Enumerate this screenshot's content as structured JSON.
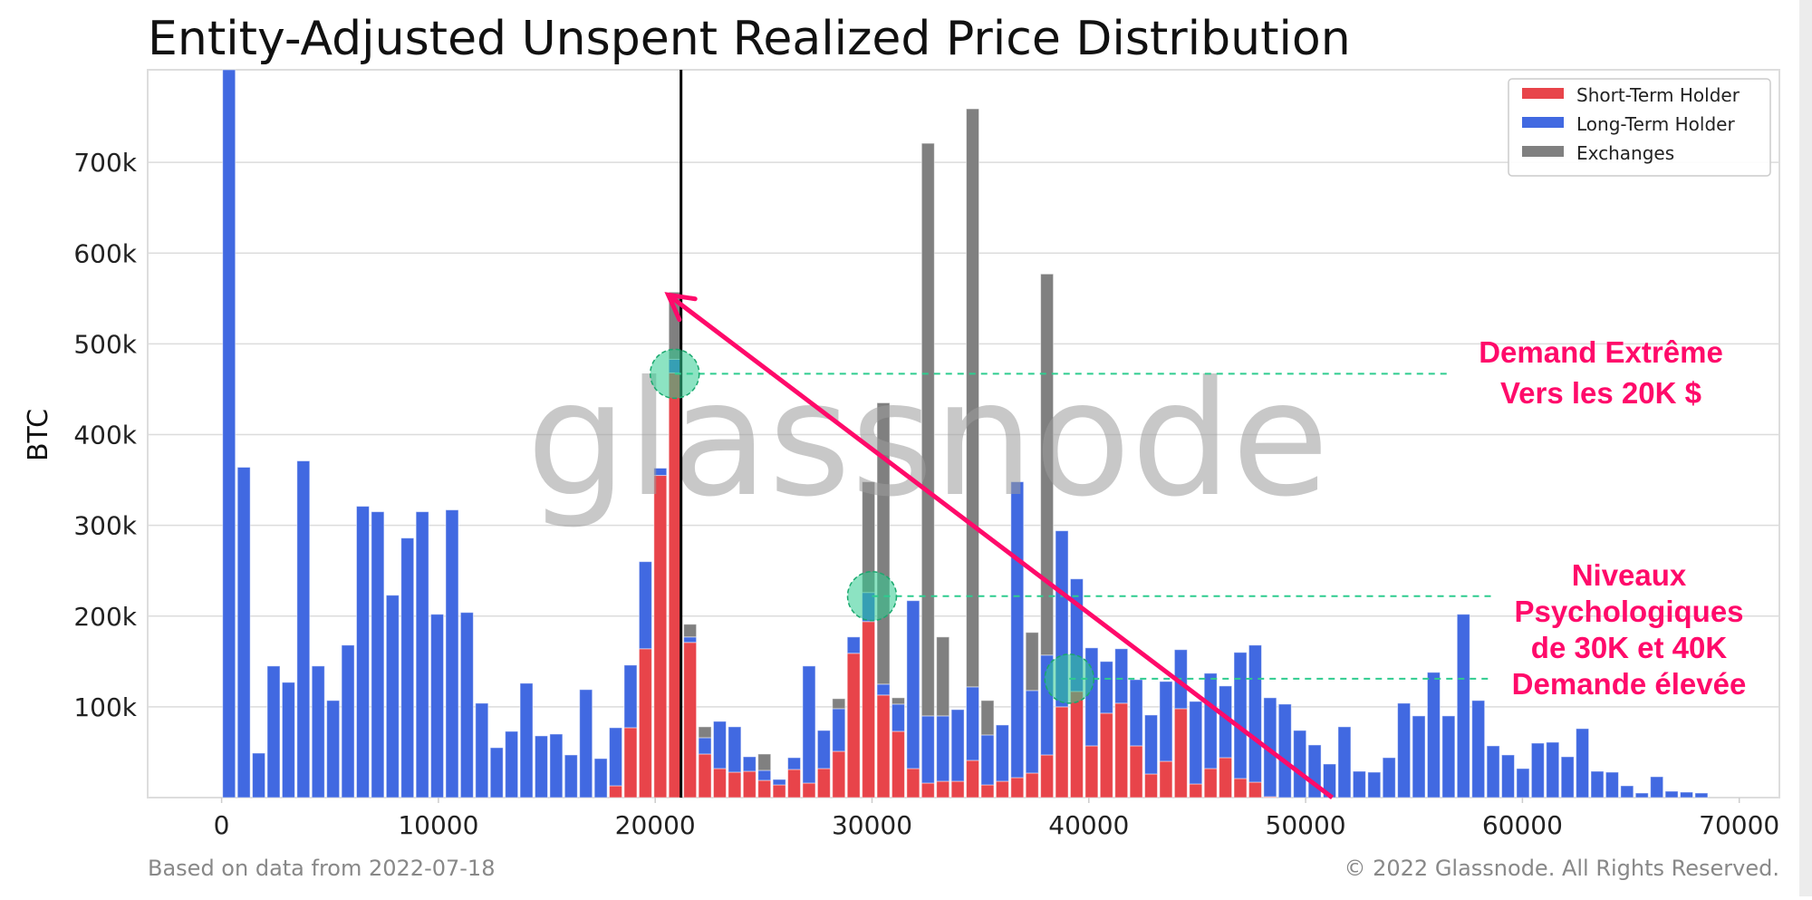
{
  "chart_data": {
    "type": "bar",
    "stacked": true,
    "title": "Entity-Adjusted Unspent Realized Price Distribution",
    "xlabel": "",
    "ylabel": "BTC",
    "xlim": [
      -4000,
      72000
    ],
    "ylim": [
      0,
      802000
    ],
    "grid": "horizontal",
    "legend_position": "top-right",
    "x_ticks": [
      0,
      10000,
      20000,
      30000,
      40000,
      50000,
      60000,
      70000
    ],
    "x_tick_labels": [
      "0",
      "10000",
      "20000",
      "30000",
      "40000",
      "50000",
      "60000",
      "70000"
    ],
    "y_ticks": [
      100000,
      200000,
      300000,
      400000,
      500000,
      600000,
      700000
    ],
    "y_tick_labels": [
      "100k",
      "200k",
      "300k",
      "400k",
      "500k",
      "600k",
      "700k"
    ],
    "x": [
      340,
      1026,
      1712,
      2398,
      3084,
      3770,
      4456,
      5142,
      5828,
      6514,
      7200,
      7886,
      8572,
      9258,
      9944,
      10630,
      11316,
      12002,
      12688,
      13374,
      14060,
      14746,
      15432,
      16118,
      16804,
      17490,
      18176,
      18862,
      19548,
      20234,
      20920,
      21606,
      22292,
      22978,
      23664,
      24350,
      25036,
      25722,
      26408,
      27094,
      27780,
      28466,
      29152,
      29838,
      30524,
      31210,
      31896,
      32582,
      33268,
      33954,
      34640,
      35326,
      36012,
      36698,
      37384,
      38070,
      38756,
      39442,
      40128,
      40814,
      41500,
      42186,
      42872,
      43558,
      44244,
      44930,
      45616,
      46302,
      46988,
      47674,
      48360,
      49046,
      49732,
      50418,
      51104,
      51790,
      52476,
      53162,
      53848,
      54534,
      55220,
      55906,
      56592,
      57278,
      57964,
      58650,
      59336,
      60022,
      60708,
      61394,
      62080,
      62766,
      63452,
      64138,
      64824,
      65510,
      66196,
      66882,
      67568,
      68254
    ],
    "series": [
      {
        "name": "Short-Term Holder",
        "color": "#e8444a",
        "values": [
          0,
          0,
          0,
          0,
          0,
          0,
          0,
          0,
          0,
          0,
          0,
          0,
          0,
          0,
          0,
          0,
          0,
          0,
          0,
          0,
          0,
          0,
          0,
          0,
          0,
          0,
          13000,
          77000,
          164000,
          355000,
          468000,
          171000,
          48000,
          32000,
          28000,
          29000,
          19000,
          14000,
          31000,
          16000,
          32000,
          51000,
          159000,
          194000,
          113000,
          73000,
          32000,
          16000,
          18000,
          18000,
          41000,
          14000,
          18000,
          22000,
          27000,
          47000,
          100000,
          117000,
          57000,
          93000,
          104000,
          57000,
          26000,
          40000,
          98000,
          15000,
          32000,
          44000,
          21000,
          17000,
          1000,
          0,
          0,
          0,
          0,
          0,
          0,
          0,
          0,
          0,
          0,
          0,
          0,
          0,
          0,
          0,
          0,
          0,
          0,
          0,
          0,
          0,
          0,
          0,
          0,
          0,
          0,
          0,
          0,
          0
        ]
      },
      {
        "name": "Long-Term Holder",
        "color": "#4169e1",
        "values": [
          850000,
          364000,
          49000,
          145000,
          127000,
          371000,
          145000,
          107000,
          168000,
          321000,
          315000,
          223000,
          286000,
          315000,
          202000,
          317000,
          204000,
          104000,
          55000,
          73000,
          126000,
          68000,
          70000,
          47000,
          119000,
          43000,
          64000,
          69000,
          96000,
          8000,
          15000,
          6000,
          18000,
          52000,
          50000,
          16000,
          11000,
          6000,
          13000,
          129000,
          42000,
          47000,
          18000,
          32000,
          12000,
          30000,
          185000,
          74000,
          72000,
          79000,
          81000,
          55000,
          62000,
          326000,
          91000,
          110000,
          194000,
          124000,
          108000,
          57000,
          60000,
          73000,
          65000,
          88000,
          65000,
          91000,
          105000,
          79000,
          139000,
          151000,
          109000,
          103000,
          74000,
          58000,
          37000,
          78000,
          29000,
          28000,
          44000,
          104000,
          90000,
          138000,
          90000,
          202000,
          107000,
          57000,
          47000,
          32000,
          60000,
          61000,
          45000,
          76000,
          29000,
          28000,
          13000,
          5000,
          23000,
          7000,
          6000,
          5000
        ]
      },
      {
        "name": "Exchanges",
        "color": "#808080",
        "values": [
          0,
          0,
          0,
          0,
          0,
          0,
          0,
          0,
          0,
          0,
          0,
          0,
          0,
          0,
          0,
          0,
          0,
          0,
          0,
          0,
          0,
          0,
          0,
          0,
          0,
          0,
          0,
          0,
          0,
          0,
          74000,
          14000,
          12000,
          0,
          0,
          0,
          18000,
          0,
          0,
          0,
          0,
          11000,
          0,
          122000,
          310000,
          7000,
          0,
          631000,
          87000,
          0,
          637000,
          38000,
          0,
          0,
          64000,
          420000,
          0,
          0,
          0,
          0,
          0,
          0,
          0,
          0,
          0,
          0,
          0,
          0,
          0,
          0,
          0,
          0,
          0,
          0,
          0,
          0,
          0,
          0,
          0,
          0,
          0,
          0,
          0,
          0,
          0,
          0,
          0,
          0,
          0,
          0,
          0,
          0,
          0,
          0,
          0,
          0,
          0,
          0,
          0,
          0
        ]
      }
    ],
    "annotations": {
      "current_price_line_x": 21190,
      "arrow": {
        "from": [
          51230,
          0
        ],
        "to": [
          20600,
          554000
        ],
        "color": "#ff0a6a"
      },
      "circles": [
        {
          "x": 20900,
          "y": 467000
        },
        {
          "x": 30000,
          "y": 222000
        },
        {
          "x": 39100,
          "y": 131000
        }
      ],
      "dashed_levels": [
        {
          "y": 467000,
          "x_from": 20900,
          "x_to": 56600
        },
        {
          "y": 222000,
          "x_from": 30000,
          "x_to": 58600
        },
        {
          "y": 131000,
          "x_from": 39100,
          "x_to": 58600
        }
      ],
      "text_color": "#ff0a6a",
      "circle_color": "#2ecc8f",
      "label_top": [
        "Demand Extrême",
        "Vers les 20K $"
      ],
      "label_bottom": [
        "Niveaux",
        "Psychologiques",
        "de 30K et 40K",
        "Demande élevée"
      ]
    }
  },
  "watermark": "glassnode",
  "footer": {
    "left": "Based on data from 2022-07-18",
    "right": "© 2022 Glassnode. All Rights Reserved."
  }
}
